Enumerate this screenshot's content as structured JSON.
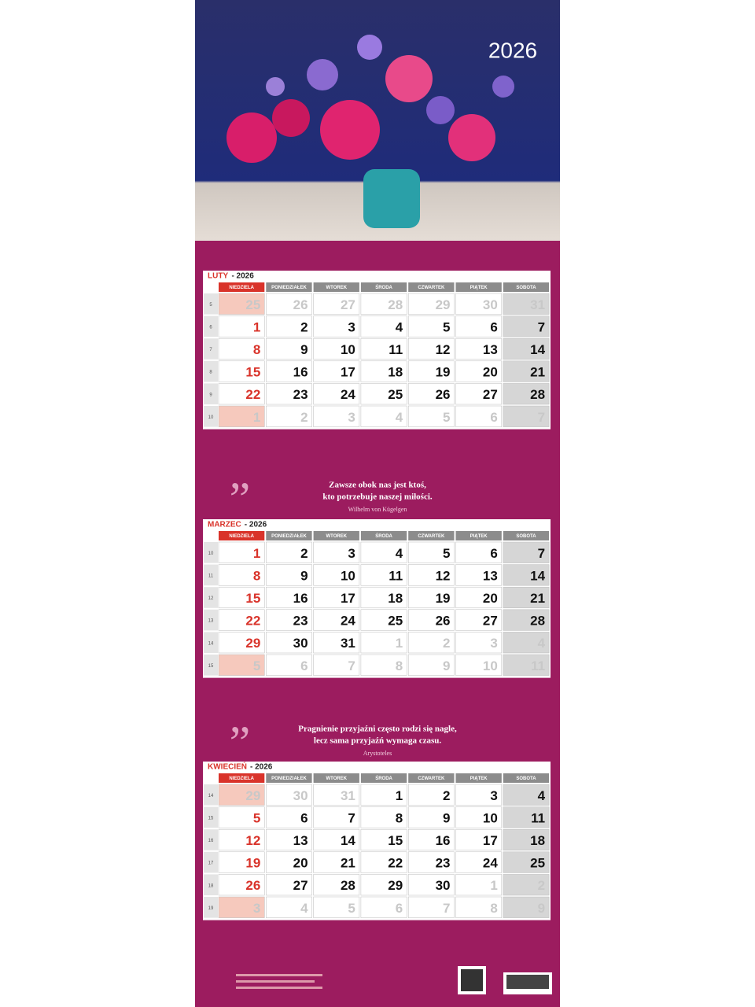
{
  "year": "2026",
  "weekdays": [
    "NIEDZIELA",
    "PONIEDZIAŁEK",
    "WTOREK",
    "ŚRODA",
    "CZWARTEK",
    "PIĄTEK",
    "SOBOTA"
  ],
  "months": [
    {
      "name": "LUTY",
      "year_label": "- 2026",
      "weeks": [
        "5",
        "6",
        "7",
        "8",
        "9",
        "10"
      ],
      "days": [
        [
          "25",
          "26",
          "27",
          "28",
          "29",
          "30",
          "31"
        ],
        [
          "1",
          "2",
          "3",
          "4",
          "5",
          "6",
          "7"
        ],
        [
          "8",
          "9",
          "10",
          "11",
          "12",
          "13",
          "14"
        ],
        [
          "15",
          "16",
          "17",
          "18",
          "19",
          "20",
          "21"
        ],
        [
          "22",
          "23",
          "24",
          "25",
          "26",
          "27",
          "28"
        ],
        [
          "1",
          "2",
          "3",
          "4",
          "5",
          "6",
          "7"
        ]
      ]
    },
    {
      "name": "MARZEC",
      "year_label": "- 2026",
      "weeks": [
        "10",
        "11",
        "12",
        "13",
        "14",
        "15"
      ],
      "days": [
        [
          "1",
          "2",
          "3",
          "4",
          "5",
          "6",
          "7"
        ],
        [
          "8",
          "9",
          "10",
          "11",
          "12",
          "13",
          "14"
        ],
        [
          "15",
          "16",
          "17",
          "18",
          "19",
          "20",
          "21"
        ],
        [
          "22",
          "23",
          "24",
          "25",
          "26",
          "27",
          "28"
        ],
        [
          "29",
          "30",
          "31",
          "1",
          "2",
          "3",
          "4"
        ],
        [
          "5",
          "6",
          "7",
          "8",
          "9",
          "10",
          "11"
        ]
      ]
    },
    {
      "name": "KWIECIEŃ",
      "year_label": "- 2026",
      "weeks": [
        "14",
        "15",
        "16",
        "17",
        "18",
        "19"
      ],
      "days": [
        [
          "29",
          "30",
          "31",
          "1",
          "2",
          "3",
          "4"
        ],
        [
          "5",
          "6",
          "7",
          "8",
          "9",
          "10",
          "11"
        ],
        [
          "12",
          "13",
          "14",
          "15",
          "16",
          "17",
          "18"
        ],
        [
          "19",
          "20",
          "21",
          "22",
          "23",
          "24",
          "25"
        ],
        [
          "26",
          "27",
          "28",
          "29",
          "30",
          "1",
          "2"
        ],
        [
          "3",
          "4",
          "5",
          "6",
          "7",
          "8",
          "9"
        ]
      ]
    }
  ],
  "quotes": [
    {
      "lines": [
        "Zawsze obok nas jest ktoś,",
        "kto potrzebuje naszej miłości."
      ],
      "author": "Wilhelm von Kügelgen"
    },
    {
      "lines": [
        "Pragnienie przyjaźni często rodzi się nagle,",
        "lecz sama przyjaźń wymaga czasu."
      ],
      "author": "Arystoteles"
    }
  ]
}
